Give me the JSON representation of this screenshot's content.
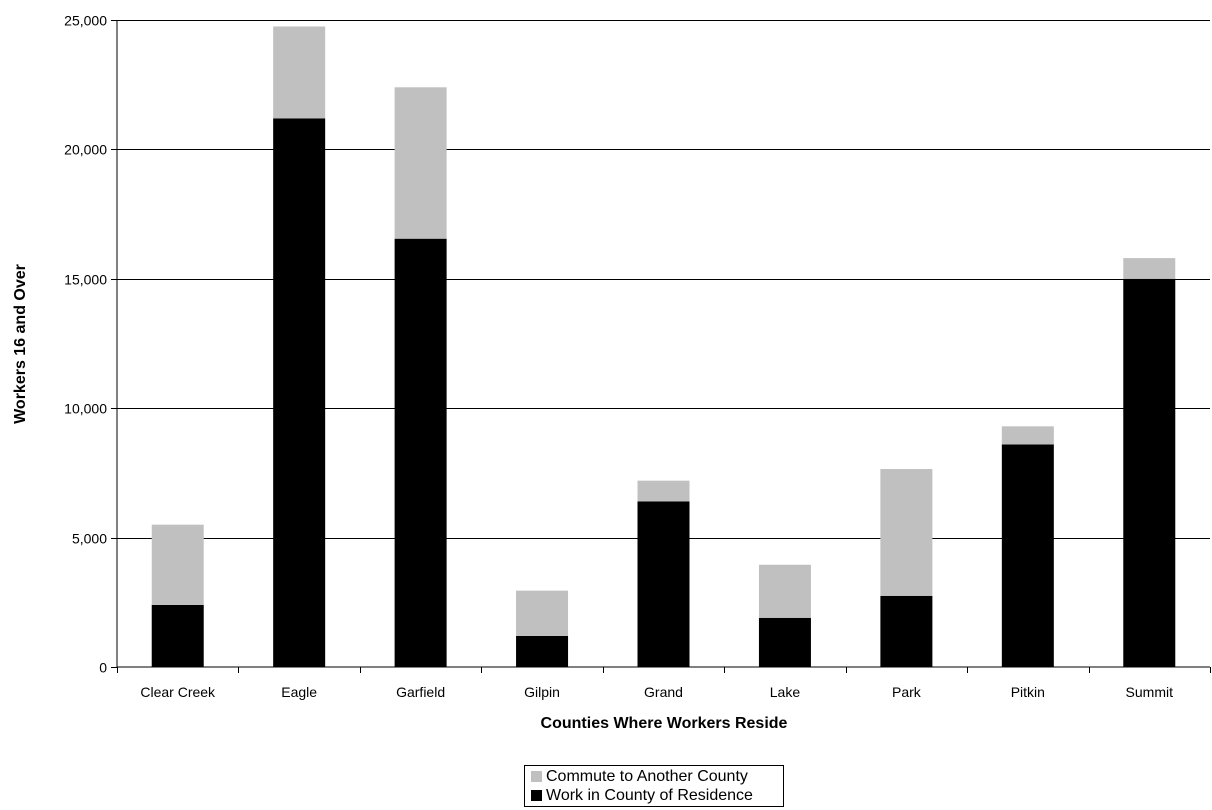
{
  "chart_data": {
    "type": "bar",
    "stacked": true,
    "title": "",
    "xlabel": "Counties Where Workers Reside",
    "ylabel": "Workers 16 and Over",
    "ylim": [
      0,
      25000
    ],
    "yticks": [
      0,
      5000,
      10000,
      15000,
      20000,
      25000
    ],
    "ytick_labels": [
      "0",
      "5,000",
      "10,000",
      "15,000",
      "20,000",
      "25,000"
    ],
    "grid": true,
    "legend_position": "bottom",
    "categories": [
      "Clear Creek",
      "Eagle",
      "Garfield",
      "Gilpin",
      "Grand",
      "Lake",
      "Park",
      "Pitkin",
      "Summit"
    ],
    "series": [
      {
        "name": "Work in County of Residence",
        "color": "#000000",
        "values": [
          2400,
          21200,
          16550,
          1200,
          6400,
          1900,
          2750,
          8600,
          15000
        ]
      },
      {
        "name": "Commute to Another County",
        "color": "#c0c0c0",
        "values": [
          3100,
          3550,
          5850,
          1750,
          800,
          2050,
          4900,
          700,
          800
        ]
      }
    ],
    "legend_order": [
      "Commute to Another County",
      "Work in County of Residence"
    ]
  }
}
